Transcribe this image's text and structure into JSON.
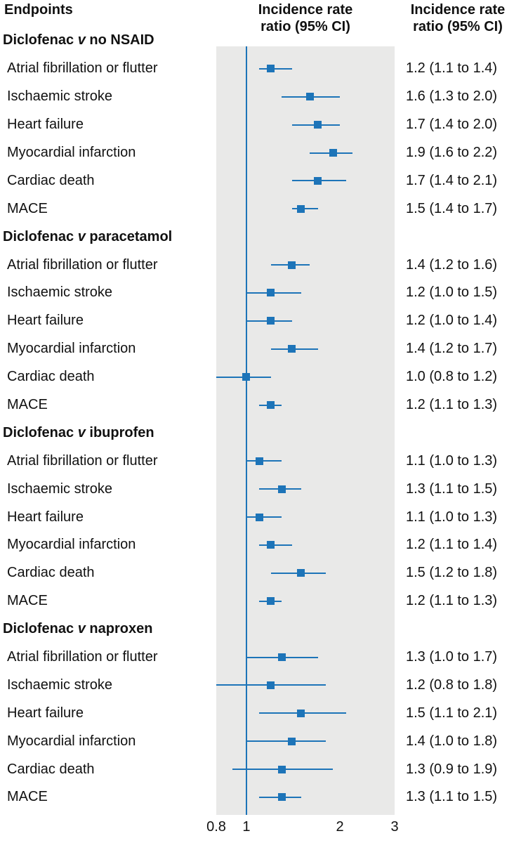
{
  "header": {
    "endpoints": "Endpoints",
    "plot_column_title": "Incidence rate\nratio (95% CI)",
    "value_column_title": "Incidence rate\nratio (95% CI)"
  },
  "colors": {
    "marker_blue": "#1d74b8",
    "plot_background": "#e9e9e8",
    "text": "#111111"
  },
  "chart_data": {
    "type": "forest",
    "x_scale": "log",
    "axis": {
      "min": 0.8,
      "max": 3,
      "ticks": [
        0.8,
        1,
        2,
        3
      ],
      "tick_labels": [
        "0.8",
        "1",
        "2",
        "3"
      ],
      "reference_line": 1
    },
    "groups": [
      {
        "drug": "Diclofenac",
        "vs": "v",
        "comparator": "no NSAID",
        "rows": [
          {
            "endpoint": "Atrial fibrillation or flutter",
            "estimate": 1.2,
            "ci_low": 1.1,
            "ci_high": 1.4,
            "text": "1.2 (1.1 to 1.4)"
          },
          {
            "endpoint": "Ischaemic stroke",
            "estimate": 1.6,
            "ci_low": 1.3,
            "ci_high": 2.0,
            "text": "1.6 (1.3 to 2.0)"
          },
          {
            "endpoint": "Heart failure",
            "estimate": 1.7,
            "ci_low": 1.4,
            "ci_high": 2.0,
            "text": "1.7 (1.4 to 2.0)"
          },
          {
            "endpoint": "Myocardial infarction",
            "estimate": 1.9,
            "ci_low": 1.6,
            "ci_high": 2.2,
            "text": "1.9 (1.6 to 2.2)"
          },
          {
            "endpoint": "Cardiac death",
            "estimate": 1.7,
            "ci_low": 1.4,
            "ci_high": 2.1,
            "text": "1.7 (1.4 to 2.1)"
          },
          {
            "endpoint": "MACE",
            "estimate": 1.5,
            "ci_low": 1.4,
            "ci_high": 1.7,
            "text": "1.5 (1.4 to 1.7)"
          }
        ]
      },
      {
        "drug": "Diclofenac",
        "vs": "v",
        "comparator": "paracetamol",
        "rows": [
          {
            "endpoint": "Atrial fibrillation or flutter",
            "estimate": 1.4,
            "ci_low": 1.2,
            "ci_high": 1.6,
            "text": "1.4 (1.2 to 1.6)"
          },
          {
            "endpoint": "Ischaemic stroke",
            "estimate": 1.2,
            "ci_low": 1.0,
            "ci_high": 1.5,
            "text": "1.2 (1.0 to 1.5)"
          },
          {
            "endpoint": "Heart failure",
            "estimate": 1.2,
            "ci_low": 1.0,
            "ci_high": 1.4,
            "text": "1.2 (1.0 to 1.4)"
          },
          {
            "endpoint": "Myocardial infarction",
            "estimate": 1.4,
            "ci_low": 1.2,
            "ci_high": 1.7,
            "text": "1.4 (1.2 to 1.7)"
          },
          {
            "endpoint": "Cardiac death",
            "estimate": 1.0,
            "ci_low": 0.8,
            "ci_high": 1.2,
            "text": "1.0 (0.8 to 1.2)"
          },
          {
            "endpoint": "MACE",
            "estimate": 1.2,
            "ci_low": 1.1,
            "ci_high": 1.3,
            "text": "1.2 (1.1 to 1.3)"
          }
        ]
      },
      {
        "drug": "Diclofenac",
        "vs": "v",
        "comparator": "ibuprofen",
        "rows": [
          {
            "endpoint": "Atrial fibrillation or flutter",
            "estimate": 1.1,
            "ci_low": 1.0,
            "ci_high": 1.3,
            "text": "1.1 (1.0 to 1.3)"
          },
          {
            "endpoint": "Ischaemic stroke",
            "estimate": 1.3,
            "ci_low": 1.1,
            "ci_high": 1.5,
            "text": "1.3 (1.1 to 1.5)"
          },
          {
            "endpoint": "Heart failure",
            "estimate": 1.1,
            "ci_low": 1.0,
            "ci_high": 1.3,
            "text": "1.1 (1.0 to 1.3)"
          },
          {
            "endpoint": "Myocardial infarction",
            "estimate": 1.2,
            "ci_low": 1.1,
            "ci_high": 1.4,
            "text": "1.2 (1.1 to 1.4)"
          },
          {
            "endpoint": "Cardiac death",
            "estimate": 1.5,
            "ci_low": 1.2,
            "ci_high": 1.8,
            "text": "1.5 (1.2 to 1.8)"
          },
          {
            "endpoint": "MACE",
            "estimate": 1.2,
            "ci_low": 1.1,
            "ci_high": 1.3,
            "text": "1.2 (1.1 to 1.3)"
          }
        ]
      },
      {
        "drug": "Diclofenac",
        "vs": "v",
        "comparator": "naproxen",
        "rows": [
          {
            "endpoint": "Atrial fibrillation or flutter",
            "estimate": 1.3,
            "ci_low": 1.0,
            "ci_high": 1.7,
            "text": "1.3 (1.0 to 1.7)"
          },
          {
            "endpoint": "Ischaemic stroke",
            "estimate": 1.2,
            "ci_low": 0.8,
            "ci_high": 1.8,
            "text": "1.2 (0.8 to 1.8)"
          },
          {
            "endpoint": "Heart failure",
            "estimate": 1.5,
            "ci_low": 1.1,
            "ci_high": 2.1,
            "text": "1.5 (1.1 to 2.1)"
          },
          {
            "endpoint": "Myocardial infarction",
            "estimate": 1.4,
            "ci_low": 1.0,
            "ci_high": 1.8,
            "text": "1.4 (1.0 to 1.8)"
          },
          {
            "endpoint": "Cardiac death",
            "estimate": 1.3,
            "ci_low": 0.9,
            "ci_high": 1.9,
            "text": "1.3 (0.9 to 1.9)"
          },
          {
            "endpoint": "MACE",
            "estimate": 1.3,
            "ci_low": 1.1,
            "ci_high": 1.5,
            "text": "1.3 (1.1 to 1.5)"
          }
        ]
      }
    ]
  }
}
